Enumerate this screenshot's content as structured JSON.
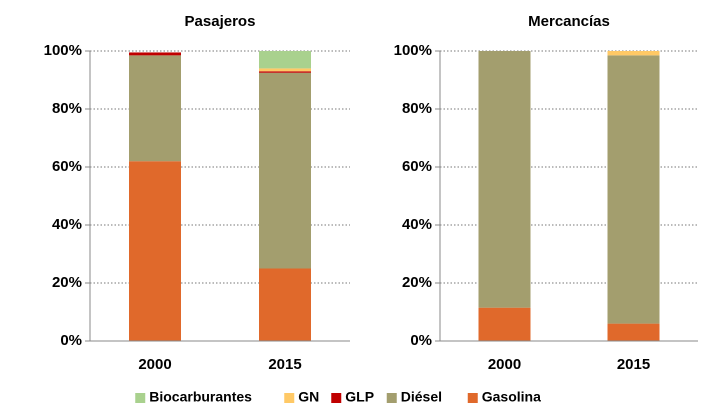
{
  "chart_data": [
    {
      "type": "bar",
      "stacked": true,
      "title": "Pasajeros",
      "categories": [
        "2000",
        "2015"
      ],
      "series": [
        {
          "name": "Gasolina",
          "color": "#e0692b",
          "values": [
            62,
            25
          ]
        },
        {
          "name": "Diésel",
          "color": "#a39e6e",
          "values": [
            36.5,
            67.5
          ]
        },
        {
          "name": "GLP",
          "color": "#c00000",
          "values": [
            1,
            0.5
          ]
        },
        {
          "name": "GN",
          "color": "#ffc966",
          "values": [
            0,
            1
          ]
        },
        {
          "name": "Biocarburantes",
          "color": "#a9d18e",
          "values": [
            0,
            6
          ]
        }
      ],
      "ylim": [
        0,
        100
      ],
      "yticks": [
        {
          "value": 0,
          "label": "0%"
        },
        {
          "value": 20,
          "label": "20%"
        },
        {
          "value": 40,
          "label": "40%"
        },
        {
          "value": 60,
          "label": "60%"
        },
        {
          "value": 80,
          "label": "80%"
        },
        {
          "value": 100,
          "label": "100%"
        }
      ],
      "grid": true,
      "legend": "bottom"
    },
    {
      "type": "bar",
      "stacked": true,
      "title": "Mercancías",
      "categories": [
        "2000",
        "2015"
      ],
      "series": [
        {
          "name": "Gasolina",
          "color": "#e0692b",
          "values": [
            11.5,
            6
          ]
        },
        {
          "name": "Diésel",
          "color": "#a39e6e",
          "values": [
            88.5,
            92.5
          ]
        },
        {
          "name": "GLP",
          "color": "#c00000",
          "values": [
            0,
            0
          ]
        },
        {
          "name": "GN",
          "color": "#ffc966",
          "values": [
            0,
            1.5
          ]
        },
        {
          "name": "Biocarburantes",
          "color": "#a9d18e",
          "values": [
            0,
            0
          ]
        }
      ],
      "ylim": [
        0,
        100
      ],
      "yticks": [
        {
          "value": 0,
          "label": "0%"
        },
        {
          "value": 20,
          "label": "20%"
        },
        {
          "value": 40,
          "label": "40%"
        },
        {
          "value": 60,
          "label": "60%"
        },
        {
          "value": 80,
          "label": "80%"
        },
        {
          "value": 100,
          "label": "100%"
        }
      ],
      "grid": true
    }
  ]
}
